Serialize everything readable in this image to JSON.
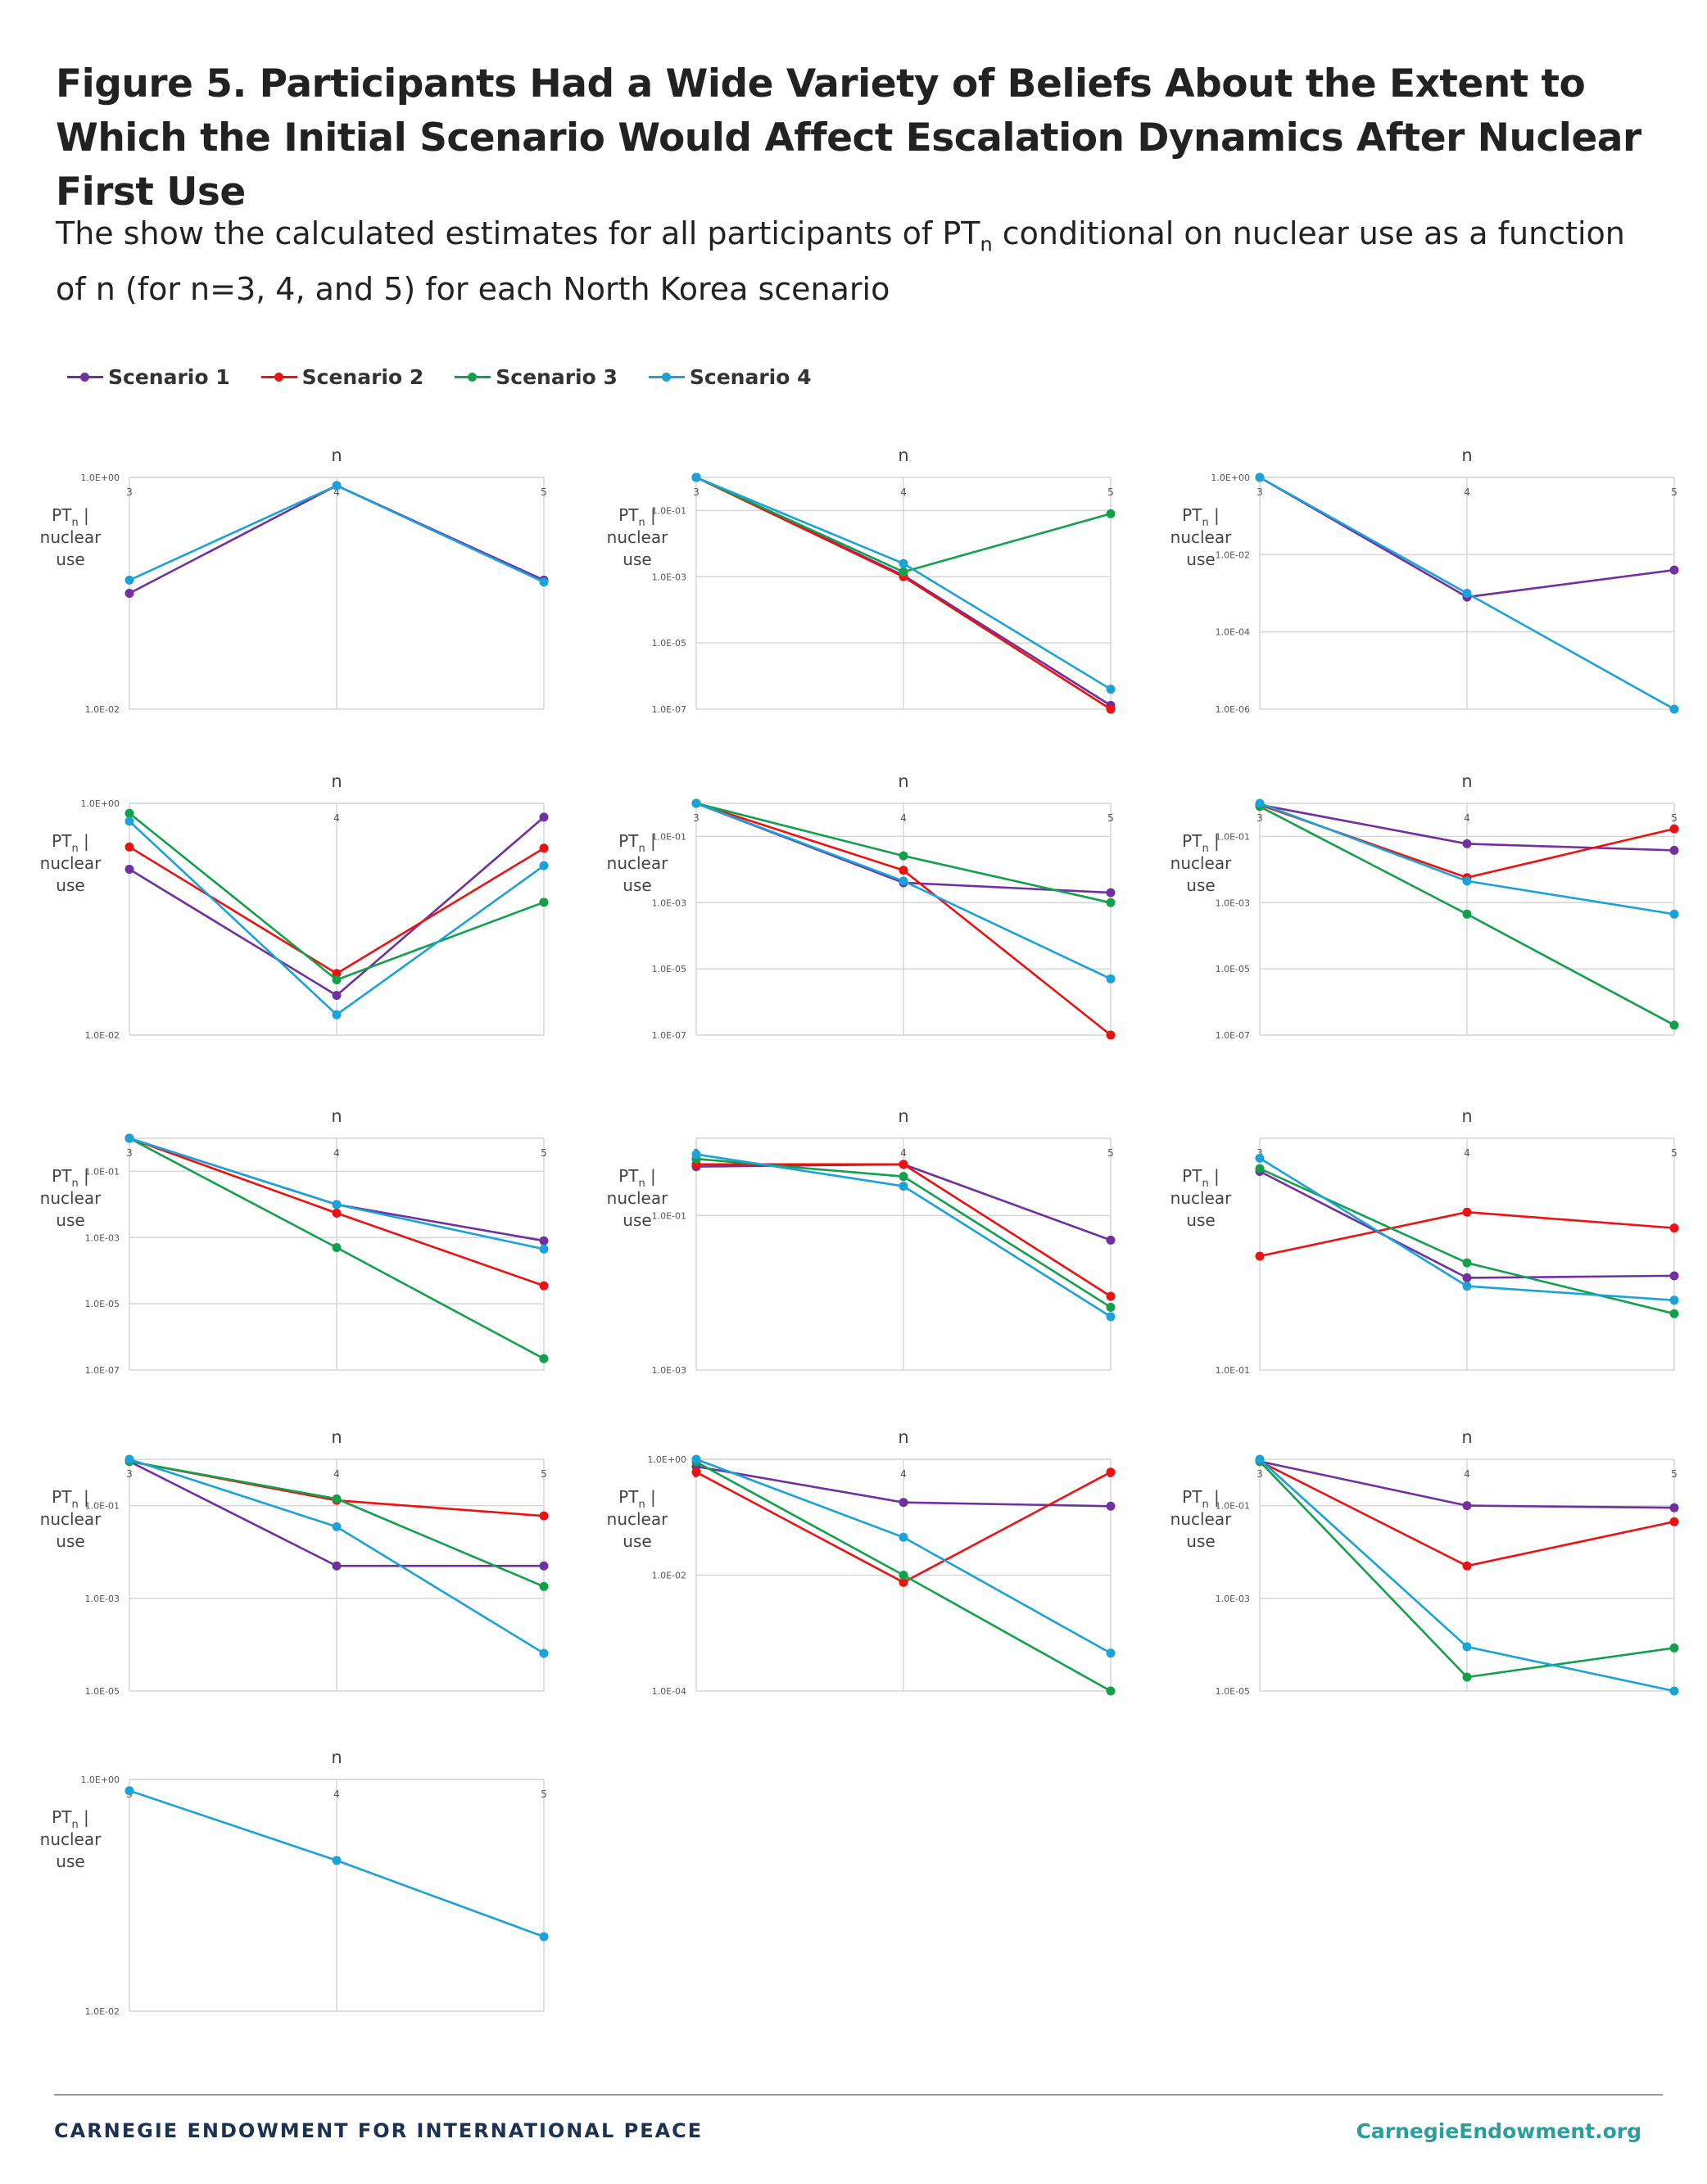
{
  "title": "Figure 5. Participants Had a Wide Variety of Beliefs About the Extent to Which the Initial Scenario Would Affect Escalation Dynamics After Nuclear First Use",
  "subtitle": {
    "before": "The show the calculated estimates for all participants of PT",
    "sub": "n",
    "after": " conditional on nuclear use as a function of n (for n=3, 4, and 5) for each North Korea scenario"
  },
  "legend": [
    {
      "name": "Scenario 1",
      "color": "#7030a0"
    },
    {
      "name": "Scenario 2",
      "color": "#ee1111"
    },
    {
      "name": "Scenario 3",
      "color": "#13a04c"
    },
    {
      "name": "Scenario 4",
      "color": "#1ba2d8"
    }
  ],
  "footer": {
    "organization": "CARNEGIE ENDOWMENT FOR INTERNATIONAL PEACE",
    "website": "CarnegieEndowment.org"
  },
  "chart_data": [
    {
      "type": "line",
      "scale": "log",
      "xlabel": "n",
      "ylabel": "PTn | nuclear use",
      "categories": [
        3,
        4,
        5
      ],
      "ylim": [
        0.01,
        1
      ],
      "tick_labels": [
        "1.0E-02",
        "1.0E+00"
      ],
      "series": [
        {
          "name": "Scenario 1",
          "values": [
            0.1,
            0.85,
            0.13
          ]
        },
        {
          "name": "Scenario 4",
          "values": [
            0.13,
            0.85,
            0.125
          ]
        }
      ]
    },
    {
      "type": "line",
      "scale": "log",
      "xlabel": "n",
      "ylabel": "PTn | nuclear use",
      "categories": [
        3,
        4,
        5
      ],
      "ylim": [
        1e-07,
        1
      ],
      "tick_labels": [
        "1.0E-07",
        "1.0E-05",
        "1.0E-03",
        "1.0E-01"
      ],
      "series": [
        {
          "name": "Scenario 1",
          "values": [
            1,
            0.0011,
            1.3e-07
          ]
        },
        {
          "name": "Scenario 2",
          "values": [
            1,
            0.001,
            1e-07
          ]
        },
        {
          "name": "Scenario 3",
          "values": [
            1,
            0.0014,
            0.08
          ]
        },
        {
          "name": "Scenario 4",
          "values": [
            1,
            0.0025,
            4e-07
          ]
        }
      ]
    },
    {
      "type": "line",
      "scale": "log",
      "xlabel": "n",
      "ylabel": "PTn | nuclear use",
      "categories": [
        3,
        4,
        5
      ],
      "ylim": [
        1e-06,
        1
      ],
      "tick_labels": [
        "1.0E-06",
        "1.0E-04",
        "1.0E-02",
        "1.0E+00"
      ],
      "series": [
        {
          "name": "Scenario 1",
          "values": [
            1,
            0.0008,
            0.004
          ]
        },
        {
          "name": "Scenario 4",
          "values": [
            1,
            0.001,
            1e-06
          ]
        }
      ]
    },
    {
      "type": "line",
      "scale": "log",
      "xlabel": "n",
      "ylabel": "PTn | nuclear use",
      "categories": [
        3,
        4,
        5
      ],
      "ylim": [
        0.01,
        1
      ],
      "tick_labels": [
        "1.0E-02",
        "1.0E+00"
      ],
      "series": [
        {
          "name": "Scenario 1",
          "values": [
            0.27,
            0.022,
            0.76
          ]
        },
        {
          "name": "Scenario 2",
          "values": [
            0.42,
            0.034,
            0.41
          ]
        },
        {
          "name": "Scenario 3",
          "values": [
            0.82,
            0.03,
            0.14
          ]
        },
        {
          "name": "Scenario 4",
          "values": [
            0.7,
            0.015,
            0.29
          ]
        }
      ]
    },
    {
      "type": "line",
      "scale": "log",
      "xlabel": "n",
      "ylabel": "PTn | nuclear use",
      "categories": [
        3,
        4,
        5
      ],
      "ylim": [
        1e-07,
        1
      ],
      "tick_labels": [
        "1.0E-07",
        "1.0E-05",
        "1.0E-03",
        "1.0E-01"
      ],
      "series": [
        {
          "name": "Scenario 1",
          "values": [
            1,
            0.004,
            0.002
          ]
        },
        {
          "name": "Scenario 2",
          "values": [
            1,
            0.0095,
            1e-07
          ]
        },
        {
          "name": "Scenario 3",
          "values": [
            1,
            0.026,
            0.001
          ]
        },
        {
          "name": "Scenario 4",
          "values": [
            1,
            0.0045,
            5e-06
          ]
        }
      ]
    },
    {
      "type": "line",
      "scale": "log",
      "xlabel": "n",
      "ylabel": "PTn | nuclear use",
      "categories": [
        3,
        4,
        5
      ],
      "ylim": [
        1e-07,
        1
      ],
      "tick_labels": [
        "1.0E-07",
        "1.0E-05",
        "1.0E-03",
        "1.0E-01"
      ],
      "series": [
        {
          "name": "Scenario 1",
          "values": [
            0.9,
            0.06,
            0.038
          ]
        },
        {
          "name": "Scenario 2",
          "values": [
            0.9,
            0.0057,
            0.17
          ]
        },
        {
          "name": "Scenario 3",
          "values": [
            0.8,
            0.00045,
            2e-07
          ]
        },
        {
          "name": "Scenario 4",
          "values": [
            1,
            0.0045,
            0.00045
          ]
        }
      ]
    },
    {
      "type": "line",
      "scale": "log",
      "xlabel": "n",
      "ylabel": "PTn | nuclear use",
      "categories": [
        3,
        4,
        5
      ],
      "ylim": [
        1e-07,
        1
      ],
      "tick_labels": [
        "1.0E-07",
        "1.0E-05",
        "1.0E-03",
        "1.0E-01"
      ],
      "series": [
        {
          "name": "Scenario 1",
          "values": [
            1,
            0.01,
            0.0008
          ]
        },
        {
          "name": "Scenario 2",
          "values": [
            1,
            0.0055,
            3.5e-05
          ]
        },
        {
          "name": "Scenario 3",
          "values": [
            1,
            0.0005,
            2.2e-07
          ]
        },
        {
          "name": "Scenario 4",
          "values": [
            1,
            0.01,
            0.00045
          ]
        }
      ]
    },
    {
      "type": "line",
      "scale": "log",
      "xlabel": "n",
      "ylabel": "PTn | nuclear use",
      "categories": [
        3,
        4,
        5
      ],
      "ylim": [
        0.001,
        1
      ],
      "tick_labels": [
        "1.0E-03",
        "1.0E-01"
      ],
      "series": [
        {
          "name": "Scenario 1",
          "values": [
            0.43,
            0.46,
            0.048
          ]
        },
        {
          "name": "Scenario 2",
          "values": [
            0.46,
            0.46,
            0.009
          ]
        },
        {
          "name": "Scenario 3",
          "values": [
            0.54,
            0.32,
            0.0065
          ]
        },
        {
          "name": "Scenario 4",
          "values": [
            0.62,
            0.24,
            0.0049
          ]
        }
      ]
    },
    {
      "type": "line",
      "scale": "log",
      "xlabel": "n",
      "ylabel": "PTn | nuclear use",
      "categories": [
        3,
        4,
        5
      ],
      "ylim": [
        0.1,
        1
      ],
      "tick_labels": [
        "1.0E-01"
      ],
      "series": [
        {
          "name": "Scenario 1",
          "values": [
            0.72,
            0.25,
            0.255
          ]
        },
        {
          "name": "Scenario 2",
          "values": [
            0.31,
            0.48,
            0.41
          ]
        },
        {
          "name": "Scenario 3",
          "values": [
            0.74,
            0.29,
            0.175
          ]
        },
        {
          "name": "Scenario 4",
          "values": [
            0.82,
            0.23,
            0.2
          ]
        }
      ]
    },
    {
      "type": "line",
      "scale": "log",
      "xlabel": "n",
      "ylabel": "PTn | nuclear use",
      "categories": [
        3,
        4,
        5
      ],
      "ylim": [
        1e-05,
        1
      ],
      "tick_labels": [
        "1.0E-05",
        "1.0E-03",
        "1.0E-01"
      ],
      "series": [
        {
          "name": "Scenario 1",
          "values": [
            0.9,
            0.005,
            0.005
          ]
        },
        {
          "name": "Scenario 2",
          "values": [
            0.9,
            0.13,
            0.06
          ]
        },
        {
          "name": "Scenario 3",
          "values": [
            0.9,
            0.14,
            0.0018
          ]
        },
        {
          "name": "Scenario 4",
          "values": [
            1,
            0.035,
            6.5e-05
          ]
        }
      ]
    },
    {
      "type": "line",
      "scale": "log",
      "xlabel": "n",
      "ylabel": "PTn | nuclear use",
      "categories": [
        3,
        4,
        5
      ],
      "ylim": [
        0.0001,
        1
      ],
      "tick_labels": [
        "1.0E-04",
        "1.0E-02",
        "1.0E+00"
      ],
      "series": [
        {
          "name": "Scenario 1",
          "values": [
            0.75,
            0.18,
            0.155
          ]
        },
        {
          "name": "Scenario 2",
          "values": [
            0.6,
            0.0075,
            0.6
          ]
        },
        {
          "name": "Scenario 3",
          "values": [
            0.9,
            0.01,
            0.0001
          ]
        },
        {
          "name": "Scenario 4",
          "values": [
            1,
            0.045,
            0.00045
          ]
        }
      ]
    },
    {
      "type": "line",
      "scale": "log",
      "xlabel": "n",
      "ylabel": "PTn | nuclear use",
      "categories": [
        3,
        4,
        5
      ],
      "ylim": [
        1e-05,
        1
      ],
      "tick_labels": [
        "1.0E-05",
        "1.0E-03",
        "1.0E-01"
      ],
      "series": [
        {
          "name": "Scenario 1",
          "values": [
            0.9,
            0.1,
            0.09
          ]
        },
        {
          "name": "Scenario 2",
          "values": [
            0.9,
            0.005,
            0.045
          ]
        },
        {
          "name": "Scenario 3",
          "values": [
            0.9,
            2e-05,
            8.5e-05
          ]
        },
        {
          "name": "Scenario 4",
          "values": [
            1,
            9e-05,
            1e-05
          ]
        }
      ]
    },
    {
      "type": "line",
      "scale": "log",
      "xlabel": "n",
      "ylabel": "PTn | nuclear use",
      "categories": [
        3,
        4,
        5
      ],
      "ylim": [
        0.01,
        1
      ],
      "tick_labels": [
        "1.0E-02",
        "1.0E+00"
      ],
      "series": [
        {
          "name": "Scenario 4",
          "values": [
            0.8,
            0.2,
            0.044
          ]
        }
      ]
    }
  ]
}
